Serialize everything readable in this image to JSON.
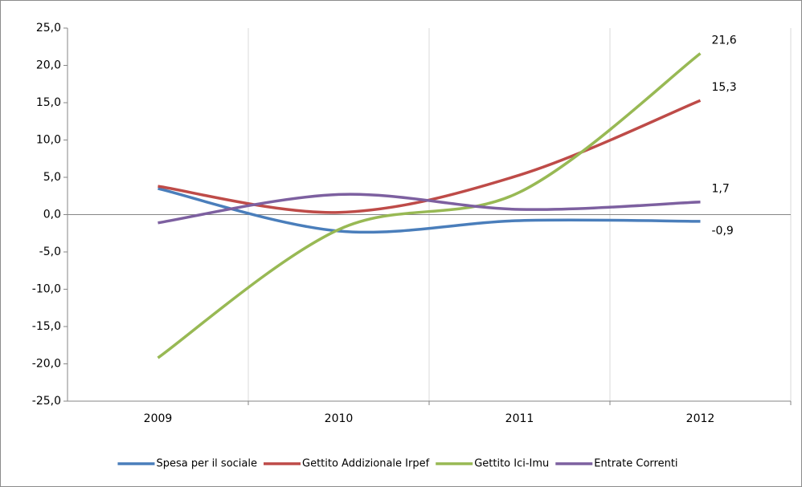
{
  "chart_data": {
    "type": "line",
    "categories": [
      "2009",
      "2010",
      "2011",
      "2012"
    ],
    "series": [
      {
        "name": "Spesa per il sociale",
        "color": "#4a7ebb",
        "values": [
          3.5,
          -2.2,
          -0.8,
          -0.9
        ],
        "value_labels": [
          null,
          null,
          null,
          "-0,9"
        ]
      },
      {
        "name": "Gettito Addizionale Irpef",
        "color": "#be4b48",
        "values": [
          3.8,
          0.3,
          5.3,
          15.3
        ],
        "value_labels": [
          null,
          null,
          null,
          "15,3"
        ]
      },
      {
        "name": "Gettito Ici-Imu",
        "color": "#98b954",
        "values": [
          -19.2,
          -2.0,
          3.0,
          21.6
        ],
        "value_labels": [
          null,
          null,
          null,
          "21,6"
        ]
      },
      {
        "name": "Entrate Correnti",
        "color": "#7d60a0",
        "values": [
          -1.1,
          2.7,
          0.7,
          1.7
        ],
        "value_labels": [
          null,
          null,
          null,
          "1,7"
        ]
      }
    ],
    "ylim": [
      -25,
      25
    ],
    "yticks": [
      {
        "value": -25,
        "label": "-25,0"
      },
      {
        "value": -20,
        "label": "-20,0"
      },
      {
        "value": -15,
        "label": "-15,0"
      },
      {
        "value": -10,
        "label": "-10,0"
      },
      {
        "value": -5,
        "label": "-5,0"
      },
      {
        "value": 0,
        "label": "0,0"
      },
      {
        "value": 5,
        "label": "5,0"
      },
      {
        "value": 10,
        "label": "10,0"
      },
      {
        "value": 15,
        "label": "15,0"
      },
      {
        "value": 20,
        "label": "20,0"
      },
      {
        "value": 25,
        "label": "25,0"
      }
    ],
    "smooth": true,
    "legend": "bottom"
  }
}
